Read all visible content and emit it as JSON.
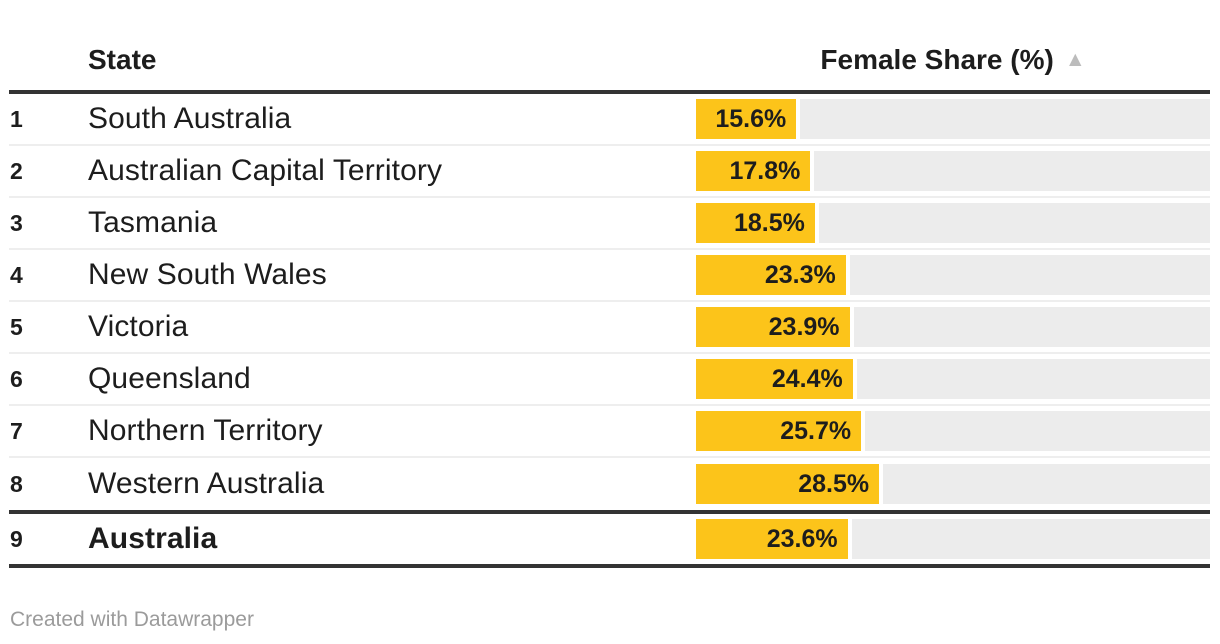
{
  "header": {
    "state_column_label": "State",
    "value_column_label": "Female Share (%)",
    "sort_glyph": "▲"
  },
  "table": {
    "rows": [
      {
        "rank": "1",
        "state": "South Australia",
        "value": 15.6,
        "value_label": "15.6%",
        "is_summary": false
      },
      {
        "rank": "2",
        "state": "Australian Capital Territory",
        "value": 17.8,
        "value_label": "17.8%",
        "is_summary": false
      },
      {
        "rank": "3",
        "state": "Tasmania",
        "value": 18.5,
        "value_label": "18.5%",
        "is_summary": false
      },
      {
        "rank": "4",
        "state": "New South Wales",
        "value": 23.3,
        "value_label": "23.3%",
        "is_summary": false
      },
      {
        "rank": "5",
        "state": "Victoria",
        "value": 23.9,
        "value_label": "23.9%",
        "is_summary": false
      },
      {
        "rank": "6",
        "state": "Queensland",
        "value": 24.4,
        "value_label": "24.4%",
        "is_summary": false
      },
      {
        "rank": "7",
        "state": "Northern Territory",
        "value": 25.7,
        "value_label": "25.7%",
        "is_summary": false
      },
      {
        "rank": "8",
        "state": "Western Australia",
        "value": 28.5,
        "value_label": "28.5%",
        "is_summary": false
      },
      {
        "rank": "9",
        "state": "Australia",
        "value": 23.6,
        "value_label": "23.6%",
        "is_summary": true
      }
    ]
  },
  "footer": {
    "credit": "Created with Datawrapper"
  },
  "colors": {
    "bar": "#FCC41A",
    "track": "#ECECEC",
    "rule": "#333333",
    "separator": "#EEEEEE",
    "text": "#1D1D1D",
    "footer_text": "#9B9B9B",
    "sort_icon": "#BCBCBC"
  },
  "chart_data": {
    "type": "bar",
    "orientation": "horizontal",
    "title": "",
    "columns": [
      "State",
      "Female Share (%)"
    ],
    "categories": [
      "South Australia",
      "Australian Capital Territory",
      "Tasmania",
      "New South Wales",
      "Victoria",
      "Queensland",
      "Northern Territory",
      "Western Australia",
      "Australia"
    ],
    "values": [
      15.6,
      17.8,
      18.5,
      23.3,
      23.9,
      24.4,
      25.7,
      28.5,
      23.6
    ],
    "value_labels": [
      "15.6%",
      "17.8%",
      "18.5%",
      "23.3%",
      "23.9%",
      "24.4%",
      "25.7%",
      "28.5%",
      "23.6%"
    ],
    "ranks": [
      1,
      2,
      3,
      4,
      5,
      6,
      7,
      8,
      9
    ],
    "xlabel": "Female Share (%)",
    "ylabel": "State",
    "xlim": [
      0,
      80
    ],
    "sort_order": "ascending",
    "summary_category": "Australia",
    "grid": "off",
    "legend": "none"
  }
}
